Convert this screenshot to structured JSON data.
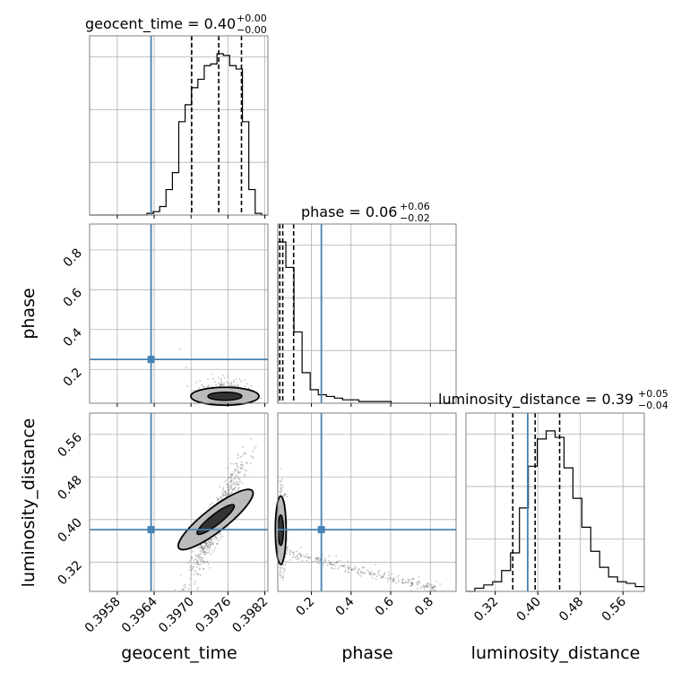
{
  "colors": {
    "truth": "#4682b4",
    "hist": "#000000",
    "grid": "#b0b0b0",
    "scatter": "#555555",
    "frame": "#7f7f7f"
  },
  "chart_data": {
    "type": "corner",
    "parameters": [
      "geocent_time",
      "phase",
      "luminosity_distance"
    ],
    "axis_labels": {
      "geocent_time": "geocent_time",
      "phase": "phase",
      "luminosity_distance": "luminosity_distance"
    },
    "ranges": {
      "geocent_time": [
        0.39535,
        0.39825
      ],
      "phase": [
        0.03,
        0.93
      ],
      "luminosity_distance": [
        0.265,
        0.6
      ]
    },
    "ticks": {
      "geocent_time": [
        "0.3958",
        "0.3964",
        "0.3970",
        "0.3976",
        "0.3982"
      ],
      "phase": [
        "0.2",
        "0.4",
        "0.6",
        "0.8"
      ],
      "luminosity_distance": [
        "0.32",
        "0.40",
        "0.48",
        "0.56"
      ]
    },
    "truths": {
      "geocent_time": 0.39635,
      "phase": 0.25,
      "luminosity_distance": 0.381
    },
    "titles": {
      "geocent_time": {
        "label": "geocent_time = 0.40",
        "plus": "+0.00",
        "minus": "−0.00"
      },
      "phase": {
        "label": "phase = 0.06",
        "plus": "+0.06",
        "minus": "−0.02"
      },
      "luminosity_distance": {
        "label": "luminosity_distance = 0.39",
        "plus": "+0.05",
        "minus": "−0.04"
      }
    },
    "quantiles": {
      "geocent_time": [
        0.39701,
        0.39745,
        0.39782
      ],
      "phase": [
        0.04,
        0.055,
        0.11
      ],
      "luminosity_distance": [
        0.353,
        0.395,
        0.441
      ]
    },
    "histograms": {
      "geocent_time": {
        "bins": [
          0.39535,
          0.39825
        ],
        "counts": [
          0,
          0,
          0,
          0,
          0,
          0,
          0,
          0,
          0,
          1,
          2,
          5,
          15,
          25,
          55,
          65,
          75,
          80,
          88,
          89,
          95,
          94,
          88,
          86,
          55,
          15,
          1,
          0
        ]
      },
      "phase": {
        "bins": [
          0.03,
          0.93
        ],
        "counts": [
          95,
          80,
          42,
          18,
          8,
          5,
          4,
          3,
          2,
          2,
          1,
          1,
          1,
          1,
          0,
          0,
          0,
          0,
          0,
          0,
          0,
          0
        ]
      },
      "luminosity_distance": {
        "bins": [
          0.265,
          0.6
        ],
        "counts": [
          0,
          2,
          4,
          6,
          13,
          24,
          52,
          78,
          95,
          100,
          96,
          77,
          58,
          40,
          25,
          15,
          9,
          6,
          5,
          3
        ]
      }
    }
  }
}
